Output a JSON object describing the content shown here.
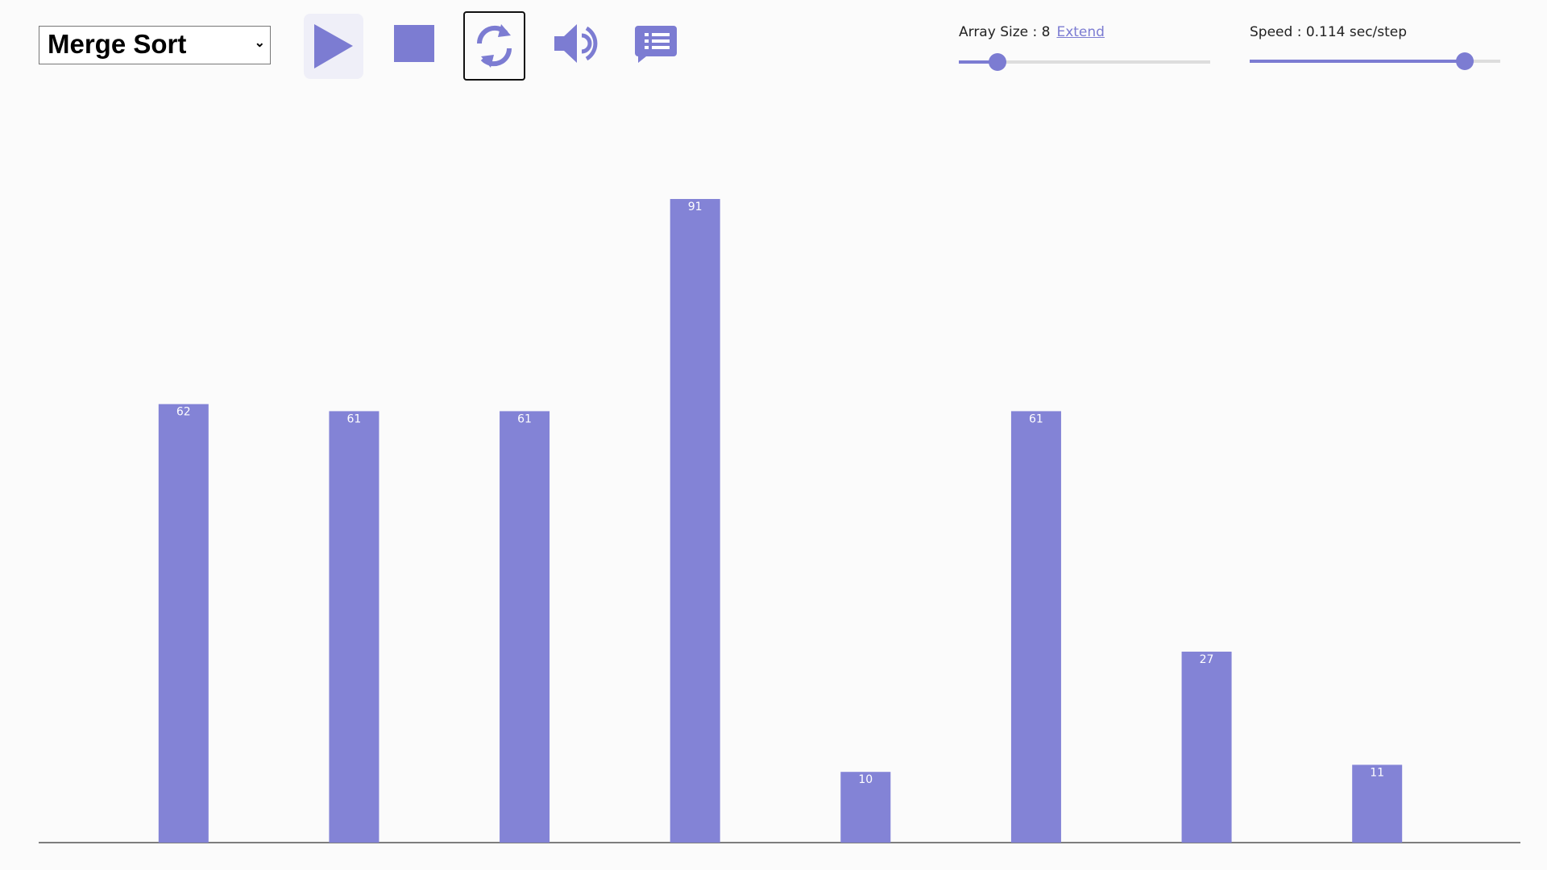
{
  "toolbar": {
    "algorithm": "Merge Sort",
    "array_size": "Array Size : 8",
    "extend": "Extend",
    "speed": "Speed : 0.114 sec/step"
  },
  "chart_data": {
    "type": "bar",
    "values": [
      62,
      61,
      61,
      91,
      10,
      61,
      27,
      11
    ],
    "color": "#8383d6",
    "ylim": [
      0,
      100
    ]
  }
}
